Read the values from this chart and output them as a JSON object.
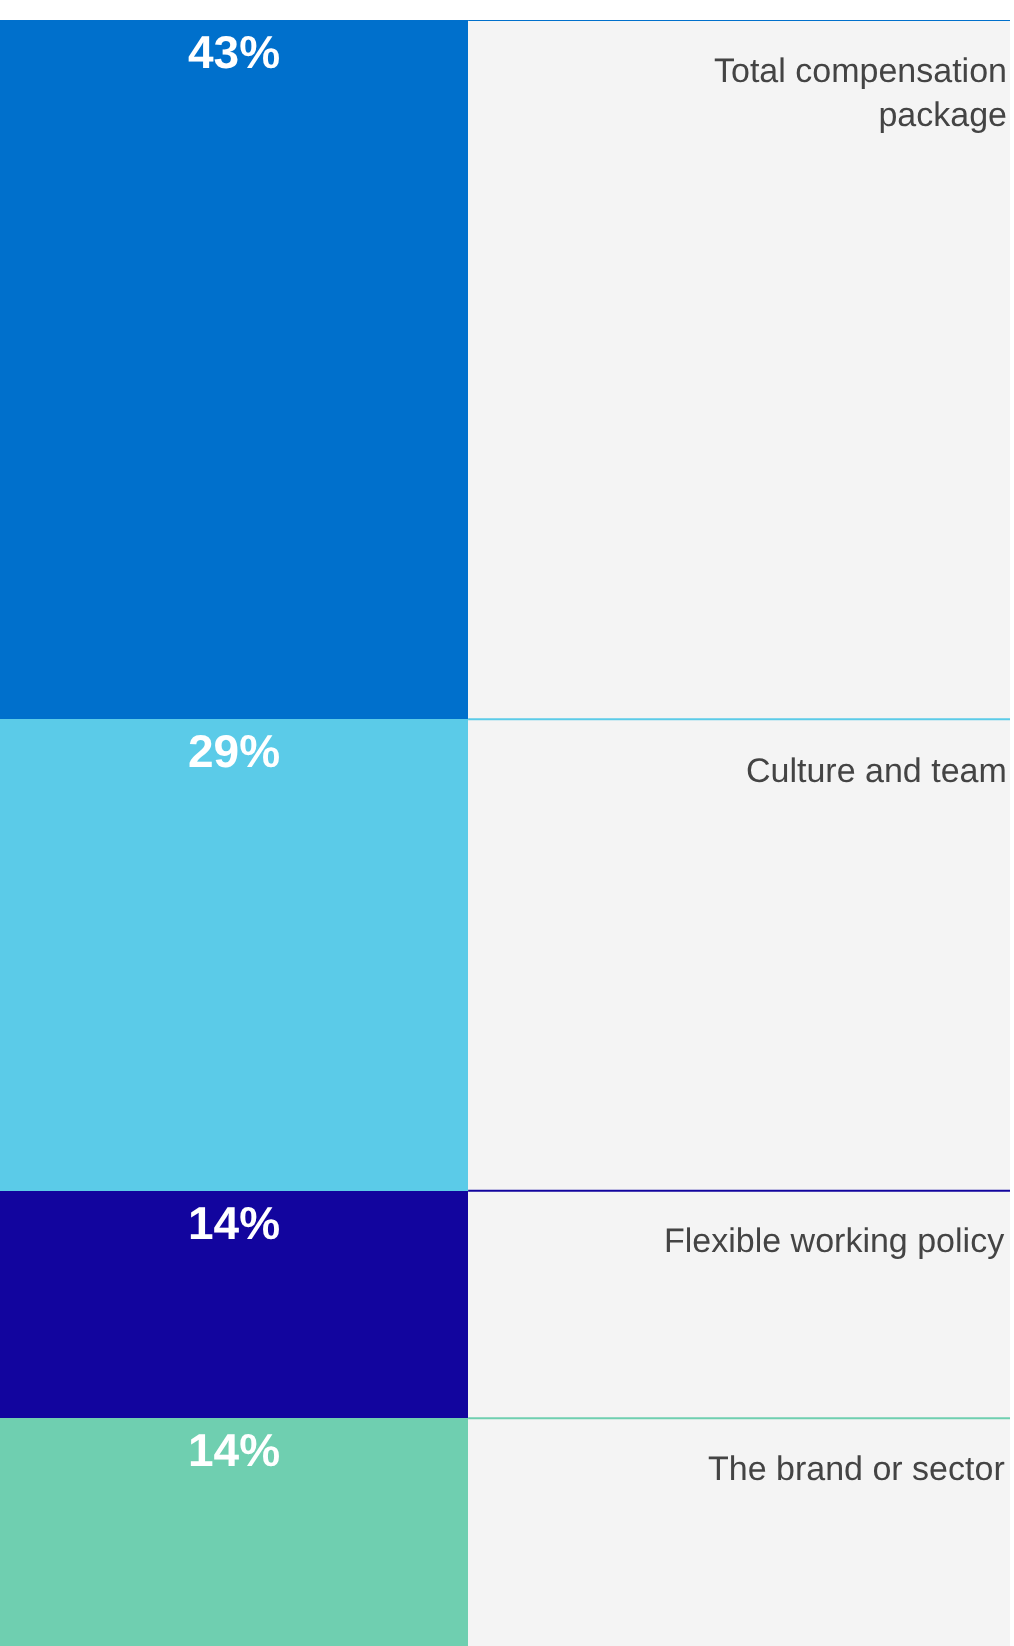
{
  "chart_data": {
    "type": "bar",
    "stacked": true,
    "categories": [
      null
    ],
    "legend": false,
    "tick_labels": false,
    "series": [
      {
        "name": "The brand or sector",
        "color": "#6fcfb0",
        "values": [
          14
        ],
        "value_labels": [
          "14%"
        ]
      },
      {
        "name": "Flexible working policy",
        "color": "#12059e",
        "values": [
          14
        ],
        "value_labels": [
          "14%"
        ]
      },
      {
        "name": "Culture and team",
        "color": "#5bcbe8",
        "values": [
          29
        ],
        "value_labels": [
          "29%"
        ]
      },
      {
        "name": "Total compensation package",
        "color": "#0070cc",
        "values": [
          43
        ],
        "value_labels": [
          "43%"
        ]
      }
    ]
  }
}
